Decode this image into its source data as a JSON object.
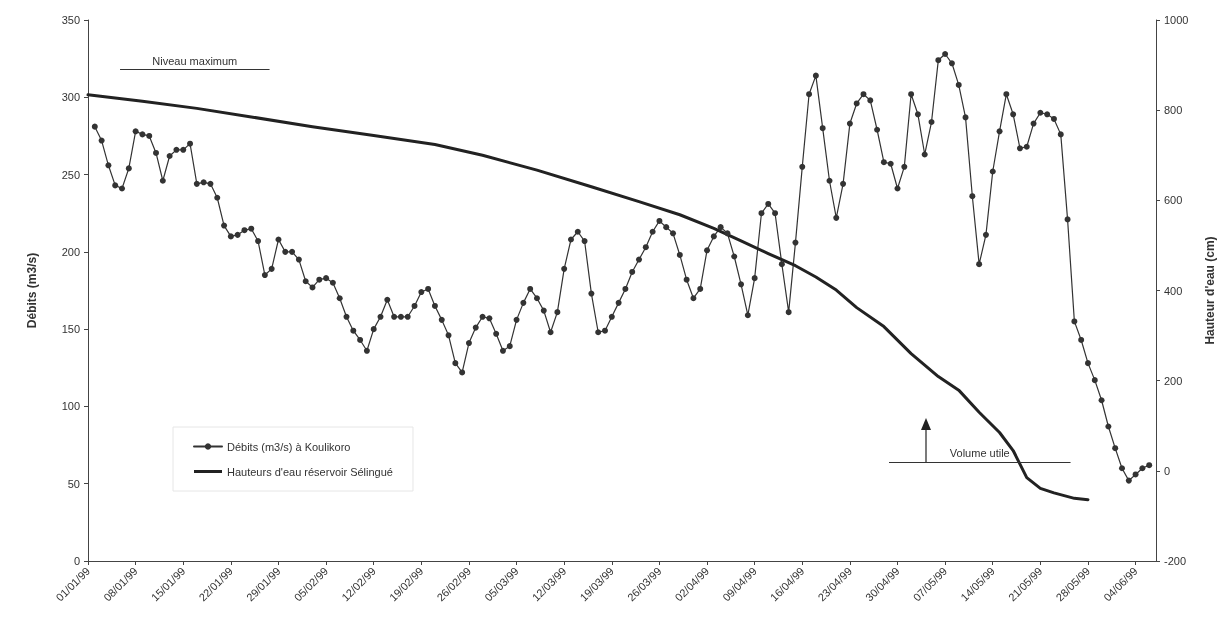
{
  "chart_data": {
    "type": "line",
    "ylabel": "Débits (m3/s)",
    "y2label": "Hauteur d'eau (cm)",
    "xlim": [
      "1999-01-01",
      "1999-06-07"
    ],
    "xticks": [
      {
        "value": "1999-01-01",
        "label": "01/01/99"
      },
      {
        "value": "1999-01-08",
        "label": "08/01/99"
      },
      {
        "value": "1999-01-15",
        "label": "15/01/99"
      },
      {
        "value": "1999-01-22",
        "label": "22/01/99"
      },
      {
        "value": "1999-01-29",
        "label": "29/01/99"
      },
      {
        "value": "1999-02-05",
        "label": "05/02/99"
      },
      {
        "value": "1999-02-12",
        "label": "12/02/99"
      },
      {
        "value": "1999-02-19",
        "label": "19/02/99"
      },
      {
        "value": "1999-02-26",
        "label": "26/02/99"
      },
      {
        "value": "1999-03-05",
        "label": "05/03/99"
      },
      {
        "value": "1999-03-12",
        "label": "12/03/99"
      },
      {
        "value": "1999-03-19",
        "label": "19/03/99"
      },
      {
        "value": "1999-03-26",
        "label": "26/03/99"
      },
      {
        "value": "1999-04-02",
        "label": "02/04/99"
      },
      {
        "value": "1999-04-09",
        "label": "09/04/99"
      },
      {
        "value": "1999-04-16",
        "label": "16/04/99"
      },
      {
        "value": "1999-04-23",
        "label": "23/04/99"
      },
      {
        "value": "1999-04-30",
        "label": "30/04/99"
      },
      {
        "value": "1999-05-07",
        "label": "07/05/99"
      },
      {
        "value": "1999-05-14",
        "label": "14/05/99"
      },
      {
        "value": "1999-05-21",
        "label": "21/05/99"
      },
      {
        "value": "1999-05-28",
        "label": "28/05/99"
      },
      {
        "value": "1999-06-04",
        "label": "04/06/99"
      }
    ],
    "ylim": [
      0,
      350
    ],
    "yticks": [
      0,
      50,
      100,
      150,
      200,
      250,
      300,
      350
    ],
    "y2lim": [
      -200,
      1000
    ],
    "y2ticks": [
      -200,
      0,
      200,
      400,
      600,
      800,
      1000
    ],
    "grid": false,
    "legend": "bottom left",
    "ref_lines": [
      {
        "axis": "y2",
        "value": 890,
        "label": "Niveau maximum"
      },
      {
        "axis": "y2",
        "value": 20,
        "label": "Volume utile"
      }
    ],
    "series": [
      {
        "name": "Débits (m3/s) à Koulikoro",
        "color": "#333333",
        "marker": "circle",
        "x": [
          "1999-01-02",
          "1999-01-03",
          "1999-01-04",
          "1999-01-05",
          "1999-01-06",
          "1999-01-07",
          "1999-01-08",
          "1999-01-09",
          "1999-01-10",
          "1999-01-11",
          "1999-01-12",
          "1999-01-13",
          "1999-01-14",
          "1999-01-15",
          "1999-01-16",
          "1999-01-17",
          "1999-01-18",
          "1999-01-19",
          "1999-01-20",
          "1999-01-21",
          "1999-01-22",
          "1999-01-23",
          "1999-01-24",
          "1999-01-25",
          "1999-01-26",
          "1999-01-27",
          "1999-01-28",
          "1999-01-29",
          "1999-01-30",
          "1999-01-31",
          "1999-02-01",
          "1999-02-02",
          "1999-02-03",
          "1999-02-04",
          "1999-02-05",
          "1999-02-06",
          "1999-02-07",
          "1999-02-08",
          "1999-02-09",
          "1999-02-10",
          "1999-02-11",
          "1999-02-12",
          "1999-02-13",
          "1999-02-14",
          "1999-02-15",
          "1999-02-16",
          "1999-02-17",
          "1999-02-18",
          "1999-02-19",
          "1999-02-20",
          "1999-02-21",
          "1999-02-22",
          "1999-02-23",
          "1999-02-24",
          "1999-02-25",
          "1999-02-26",
          "1999-02-27",
          "1999-02-28",
          "1999-03-01",
          "1999-03-02",
          "1999-03-03",
          "1999-03-04",
          "1999-03-05",
          "1999-03-06",
          "1999-03-07",
          "1999-03-08",
          "1999-03-09",
          "1999-03-10",
          "1999-03-11",
          "1999-03-12",
          "1999-03-13",
          "1999-03-14",
          "1999-03-15",
          "1999-03-16",
          "1999-03-17",
          "1999-03-18",
          "1999-03-19",
          "1999-03-20",
          "1999-03-21",
          "1999-03-22",
          "1999-03-23",
          "1999-03-24",
          "1999-03-25",
          "1999-03-26",
          "1999-03-27",
          "1999-03-28",
          "1999-03-29",
          "1999-03-30",
          "1999-03-31",
          "1999-04-01",
          "1999-04-02",
          "1999-04-03",
          "1999-04-04",
          "1999-04-05",
          "1999-04-06",
          "1999-04-07",
          "1999-04-08",
          "1999-04-09",
          "1999-04-10",
          "1999-04-11",
          "1999-04-12",
          "1999-04-13",
          "1999-04-14",
          "1999-04-15",
          "1999-04-16",
          "1999-04-17",
          "1999-04-18",
          "1999-04-19",
          "1999-04-20",
          "1999-04-21",
          "1999-04-22",
          "1999-04-23",
          "1999-04-24",
          "1999-04-25",
          "1999-04-26",
          "1999-04-27",
          "1999-04-28",
          "1999-04-29",
          "1999-04-30",
          "1999-05-01",
          "1999-05-02",
          "1999-05-03",
          "1999-05-04",
          "1999-05-05",
          "1999-05-06",
          "1999-05-07",
          "1999-05-08",
          "1999-05-09",
          "1999-05-10",
          "1999-05-11",
          "1999-05-12",
          "1999-05-13",
          "1999-05-14",
          "1999-05-15",
          "1999-05-16",
          "1999-05-17",
          "1999-05-18",
          "1999-05-19",
          "1999-05-20",
          "1999-05-21",
          "1999-05-22",
          "1999-05-23",
          "1999-05-24",
          "1999-05-25",
          "1999-05-26",
          "1999-05-27",
          "1999-05-28",
          "1999-05-29",
          "1999-05-30",
          "1999-05-31",
          "1999-06-01",
          "1999-06-02",
          "1999-06-03",
          "1999-06-04",
          "1999-06-05",
          "1999-06-06"
        ],
        "values": [
          281,
          272,
          256,
          243,
          241,
          254,
          278,
          276,
          275,
          264,
          246,
          262,
          266,
          266,
          270,
          244,
          245,
          244,
          235,
          217,
          210,
          211,
          214,
          215,
          207,
          185,
          189,
          208,
          200,
          200,
          195,
          181,
          177,
          182,
          183,
          180,
          170,
          158,
          149,
          143,
          136,
          150,
          158,
          169,
          158,
          158,
          158,
          165,
          174,
          176,
          165,
          156,
          146,
          128,
          122,
          141,
          151,
          158,
          157,
          147,
          136,
          139,
          156,
          167,
          176,
          170,
          162,
          148,
          161,
          189,
          208,
          213,
          207,
          173,
          148,
          149,
          158,
          167,
          176,
          187,
          195,
          203,
          213,
          220,
          216,
          212,
          198,
          182,
          170,
          176,
          201,
          210,
          216,
          212,
          197,
          179,
          159,
          183,
          225,
          231,
          225,
          192,
          161,
          206,
          255,
          302,
          314,
          280,
          246,
          222,
          244,
          283,
          296,
          302,
          298,
          279,
          258,
          257,
          241,
          255,
          302,
          289,
          263,
          284,
          324,
          328,
          322,
          308,
          287,
          236,
          192,
          211,
          252,
          278,
          302,
          289,
          267,
          268,
          283,
          290,
          289,
          286,
          276,
          221,
          155,
          143,
          128,
          117,
          104,
          87,
          73,
          60,
          52,
          56,
          60,
          62
        ]
      },
      {
        "name": "Hauteurs d'eau réservoir Sélingué",
        "color": "#222222",
        "marker": "none",
        "axis": "y2",
        "x": [
          "1999-01-01",
          "1999-01-09",
          "1999-01-17",
          "1999-01-25",
          "1999-02-03",
          "1999-02-12",
          "1999-02-21",
          "1999-02-28",
          "1999-03-08",
          "1999-03-16",
          "1999-03-23",
          "1999-03-29",
          "1999-04-03",
          "1999-04-07",
          "1999-04-11",
          "1999-04-15",
          "1999-04-18",
          "1999-04-21",
          "1999-04-24",
          "1999-04-28",
          "1999-05-02",
          "1999-05-06",
          "1999-05-09",
          "1999-05-12",
          "1999-05-15",
          "1999-05-17",
          "1999-05-19",
          "1999-05-21",
          "1999-05-23",
          "1999-05-26",
          "1999-05-28"
        ],
        "values": [
          834,
          820,
          804,
          785,
          763,
          744,
          724,
          700,
          667,
          630,
          597,
          568,
          538,
          510,
          482,
          455,
          430,
          401,
          362,
          320,
          260,
          209,
          179,
          130,
          85,
          45,
          -15,
          -39,
          -49,
          -61,
          -64
        ]
      }
    ]
  }
}
